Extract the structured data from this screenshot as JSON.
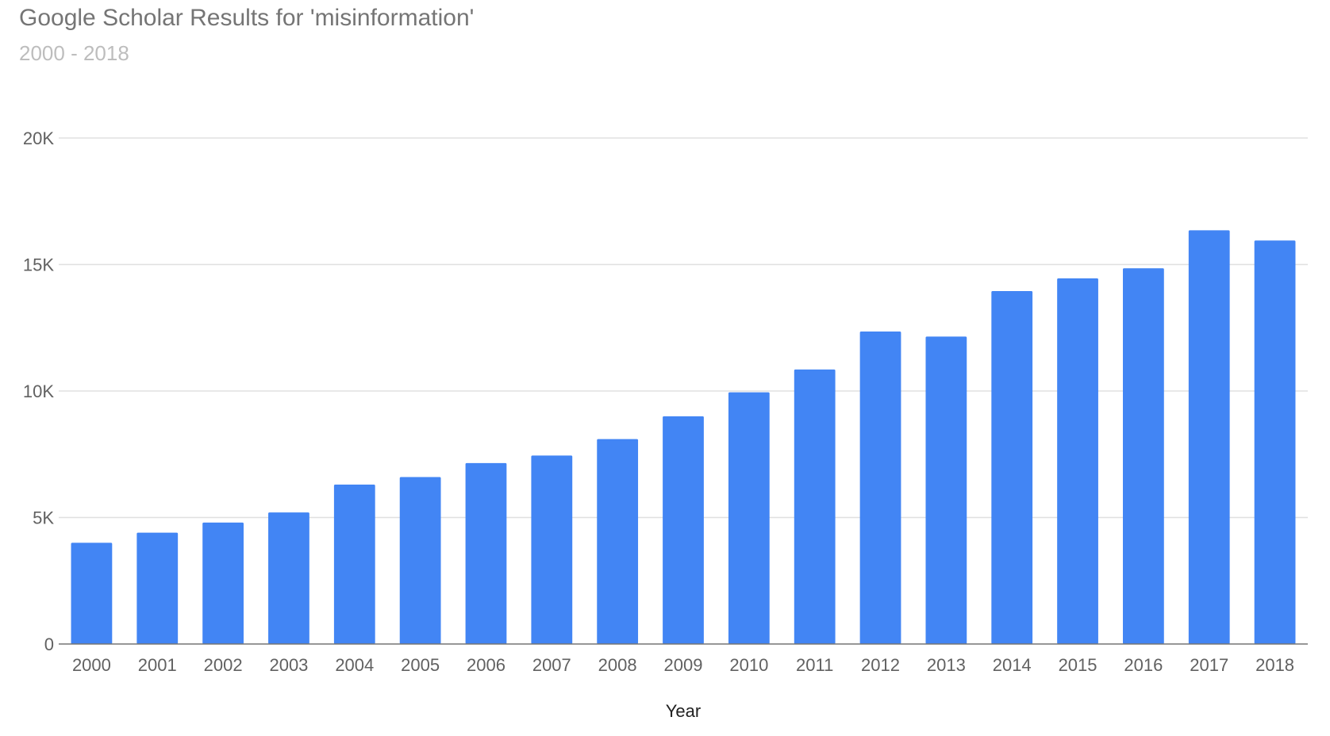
{
  "chart_data": {
    "type": "bar",
    "title": "Google Scholar Results for 'misinformation'",
    "subtitle": "2000 - 2018",
    "xlabel": "Year",
    "ylabel": "",
    "categories": [
      "2000",
      "2001",
      "2002",
      "2003",
      "2004",
      "2005",
      "2006",
      "2007",
      "2008",
      "2009",
      "2010",
      "2011",
      "2012",
      "2013",
      "2014",
      "2015",
      "2016",
      "2017",
      "2018"
    ],
    "values": [
      4000,
      4400,
      4800,
      5200,
      6300,
      6600,
      7150,
      7450,
      8100,
      9000,
      9950,
      10850,
      12350,
      12150,
      13950,
      14450,
      14850,
      16350,
      15950
    ],
    "yticks": [
      {
        "value": 0,
        "label": "0"
      },
      {
        "value": 5000,
        "label": "5K"
      },
      {
        "value": 10000,
        "label": "10K"
      },
      {
        "value": 15000,
        "label": "15K"
      },
      {
        "value": 20000,
        "label": "20K"
      }
    ],
    "ylim": [
      0,
      20000
    ],
    "grid": true,
    "legend": "none",
    "colors": {
      "bar": "#4285f4",
      "grid": "#e0e0e0",
      "axis": "#757575"
    }
  }
}
